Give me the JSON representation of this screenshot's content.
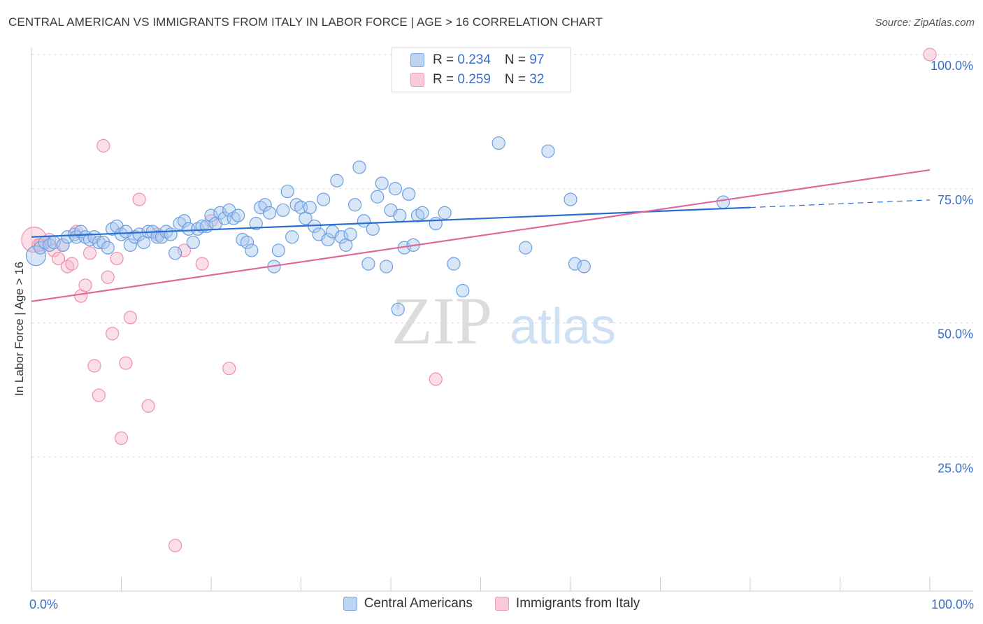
{
  "title": "CENTRAL AMERICAN VS IMMIGRANTS FROM ITALY IN LABOR FORCE | AGE > 16 CORRELATION CHART",
  "source": "Source: ZipAtlas.com",
  "watermark": {
    "zip": "ZIP",
    "atlas": "atlas"
  },
  "colors": {
    "blue_fill": "#a9c8f0",
    "blue_edge": "#6a9ee0",
    "blue_line": "#2a6fd0",
    "pink_fill": "#f7b9cc",
    "pink_edge": "#ee8fb0",
    "pink_line": "#e0679a",
    "tick_label": "#3a6fc8",
    "grid": "#dddddd"
  },
  "legend_inset": {
    "rows": [
      {
        "r_label": "R = ",
        "r_value": "0.234",
        "n_label": "N = ",
        "n_value": "97"
      },
      {
        "r_label": "R = ",
        "r_value": "0.259",
        "n_label": "N = ",
        "n_value": "32"
      }
    ]
  },
  "legend_bottom": [
    "Central Americans",
    "Immigrants from Italy"
  ],
  "chart_data": {
    "type": "scatter",
    "xlabel": "",
    "ylabel": "In Labor Force | Age > 16",
    "xlim": [
      0,
      100
    ],
    "ylim": [
      0,
      100
    ],
    "x_tick_labels": [
      {
        "value": 0,
        "label": "0.0%"
      },
      {
        "value": 100,
        "label": "100.0%"
      }
    ],
    "y_tick_labels": [
      {
        "value": 25,
        "label": "25.0%"
      },
      {
        "value": 50,
        "label": "50.0%"
      },
      {
        "value": 75,
        "label": "75.0%"
      },
      {
        "value": 100,
        "label": "100.0%"
      }
    ],
    "grid": true,
    "series": [
      {
        "name": "Central Americans",
        "color": "blue",
        "trend": {
          "x": [
            0,
            80
          ],
          "y": [
            66.0,
            71.5
          ],
          "dashed_to": [
            100,
            72.9
          ]
        },
        "points": [
          [
            0.5,
            62.5
          ],
          [
            1,
            64
          ],
          [
            1.5,
            65
          ],
          [
            2,
            64.5
          ],
          [
            2.5,
            65
          ],
          [
            3.5,
            64.5
          ],
          [
            4,
            66
          ],
          [
            4.8,
            66.5
          ],
          [
            5,
            66
          ],
          [
            5.5,
            67
          ],
          [
            6,
            66
          ],
          [
            6.5,
            65.5
          ],
          [
            7,
            66
          ],
          [
            7.5,
            65
          ],
          [
            8,
            65
          ],
          [
            8.5,
            64
          ],
          [
            9,
            67.5
          ],
          [
            9.5,
            68
          ],
          [
            10,
            66.5
          ],
          [
            10.5,
            67
          ],
          [
            11,
            64.5
          ],
          [
            11.5,
            66
          ],
          [
            12,
            66.5
          ],
          [
            12.5,
            65
          ],
          [
            13,
            67
          ],
          [
            13.5,
            67
          ],
          [
            14,
            66
          ],
          [
            14.5,
            66
          ],
          [
            15,
            67
          ],
          [
            15.5,
            66.5
          ],
          [
            16,
            63
          ],
          [
            16.5,
            68.5
          ],
          [
            17,
            69
          ],
          [
            17.5,
            67.5
          ],
          [
            18,
            65
          ],
          [
            18.5,
            67.5
          ],
          [
            19,
            68
          ],
          [
            19.5,
            68
          ],
          [
            20,
            70
          ],
          [
            20.5,
            68.5
          ],
          [
            21,
            70.5
          ],
          [
            21.5,
            69.5
          ],
          [
            22,
            71
          ],
          [
            22.5,
            69.5
          ],
          [
            23,
            70
          ],
          [
            23.5,
            65.5
          ],
          [
            24,
            65
          ],
          [
            24.5,
            63.5
          ],
          [
            25,
            68.5
          ],
          [
            25.5,
            71.5
          ],
          [
            26,
            72
          ],
          [
            26.5,
            70.5
          ],
          [
            27,
            60.5
          ],
          [
            27.5,
            63.5
          ],
          [
            28,
            71
          ],
          [
            28.5,
            74.5
          ],
          [
            29,
            66
          ],
          [
            29.5,
            72
          ],
          [
            30,
            71.5
          ],
          [
            30.5,
            69.5
          ],
          [
            31,
            71.5
          ],
          [
            31.5,
            68
          ],
          [
            32,
            66.5
          ],
          [
            32.5,
            73
          ],
          [
            33,
            65.5
          ],
          [
            33.5,
            67
          ],
          [
            34,
            76.5
          ],
          [
            34.5,
            66
          ],
          [
            35,
            64.5
          ],
          [
            35.5,
            66.5
          ],
          [
            36,
            72
          ],
          [
            36.5,
            79
          ],
          [
            37,
            69
          ],
          [
            37.5,
            61
          ],
          [
            38,
            67.5
          ],
          [
            38.5,
            73.5
          ],
          [
            39,
            76
          ],
          [
            39.5,
            60.5
          ],
          [
            40,
            71
          ],
          [
            40.5,
            75
          ],
          [
            40.8,
            52.5
          ],
          [
            41,
            70
          ],
          [
            41.5,
            64
          ],
          [
            42,
            74
          ],
          [
            42.5,
            64.5
          ],
          [
            43,
            70
          ],
          [
            43.5,
            70.5
          ],
          [
            45,
            68.5
          ],
          [
            46,
            70.5
          ],
          [
            47,
            61
          ],
          [
            48,
            56
          ],
          [
            52,
            83.5
          ],
          [
            55,
            64
          ],
          [
            57.5,
            82
          ],
          [
            60,
            73
          ],
          [
            60.5,
            61
          ],
          [
            61.5,
            60.5
          ],
          [
            77,
            72.5
          ]
        ]
      },
      {
        "name": "Immigrants from Italy",
        "color": "pink",
        "trend": {
          "x": [
            0,
            100
          ],
          "y": [
            54.0,
            78.5
          ]
        },
        "points": [
          [
            0.3,
            65.5
          ],
          [
            1,
            64.5
          ],
          [
            2,
            65.5
          ],
          [
            2.5,
            63.5
          ],
          [
            3,
            62
          ],
          [
            3.5,
            64.5
          ],
          [
            4,
            60.5
          ],
          [
            4.5,
            61
          ],
          [
            5,
            67
          ],
          [
            5.5,
            55
          ],
          [
            6,
            57
          ],
          [
            6.5,
            63
          ],
          [
            7,
            42
          ],
          [
            7.5,
            36.5
          ],
          [
            8,
            83
          ],
          [
            8.5,
            58.5
          ],
          [
            9,
            48
          ],
          [
            9.5,
            62
          ],
          [
            10,
            28.5
          ],
          [
            10.5,
            42.5
          ],
          [
            11,
            51
          ],
          [
            12,
            73
          ],
          [
            13,
            34.5
          ],
          [
            14,
            66.5
          ],
          [
            16,
            8.5
          ],
          [
            17,
            63.5
          ],
          [
            19,
            61
          ],
          [
            20,
            69
          ],
          [
            22,
            41.5
          ],
          [
            45,
            39.5
          ],
          [
            100,
            100
          ],
          [
            0.8,
            64.5
          ]
        ]
      }
    ]
  }
}
